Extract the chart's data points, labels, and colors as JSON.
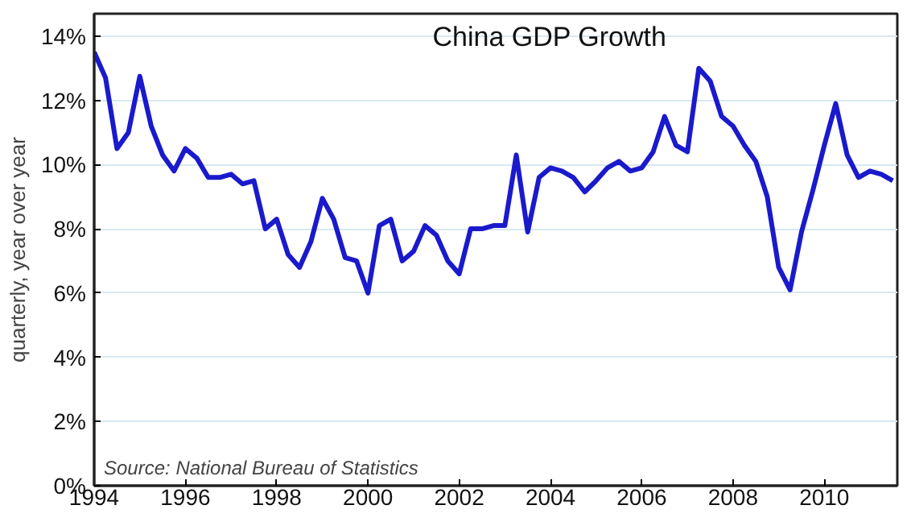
{
  "chart_data": {
    "type": "line",
    "title": "China GDP Growth",
    "ylabel": "quarterly, year over year",
    "annotations": [
      "Source: National Bureau of Statistics"
    ],
    "x": [
      1994,
      1994.25,
      1994.5,
      1994.75,
      1995,
      1995.25,
      1995.5,
      1995.75,
      1996,
      1996.25,
      1996.5,
      1996.75,
      1997,
      1997.25,
      1997.5,
      1997.75,
      1998,
      1998.25,
      1998.5,
      1998.75,
      1999,
      1999.25,
      1999.5,
      1999.75,
      2000,
      2000.25,
      2000.5,
      2000.75,
      2001,
      2001.25,
      2001.5,
      2001.75,
      2002,
      2002.25,
      2002.5,
      2002.75,
      2003,
      2003.25,
      2003.5,
      2003.75,
      2004,
      2004.25,
      2004.5,
      2004.75,
      2005,
      2005.25,
      2005.5,
      2005.75,
      2006,
      2006.25,
      2006.5,
      2006.75,
      2007,
      2007.25,
      2007.5,
      2007.75,
      2008,
      2008.25,
      2008.5,
      2008.75,
      2009,
      2009.25,
      2009.5,
      2009.75,
      2010,
      2010.25,
      2010.5,
      2010.75,
      2011,
      2011.25,
      2011.5
    ],
    "series": [
      {
        "color": "#1a1acc",
        "values": [
          13.5,
          12.7,
          10.5,
          11.0,
          12.75,
          11.2,
          10.3,
          9.8,
          10.5,
          10.2,
          9.6,
          9.6,
          9.7,
          9.4,
          9.5,
          8.0,
          8.3,
          7.2,
          6.8,
          7.6,
          8.95,
          8.3,
          7.1,
          7.0,
          6.0,
          8.1,
          8.3,
          7.0,
          7.3,
          8.1,
          7.8,
          7.0,
          6.6,
          8.0,
          8.0,
          8.1,
          8.1,
          10.3,
          7.9,
          9.6,
          9.9,
          9.8,
          9.6,
          9.15,
          9.5,
          9.9,
          10.1,
          9.8,
          9.9,
          10.4,
          11.5,
          10.6,
          10.4,
          13.0,
          12.6,
          11.5,
          11.2,
          10.6,
          10.1,
          9.0,
          6.8,
          6.1,
          7.9,
          9.2,
          10.6,
          11.9,
          10.3,
          9.6,
          9.8,
          9.7,
          9.5
        ]
      }
    ],
    "xlim": [
      1994,
      2011.6
    ],
    "ylim": [
      0,
      14.7
    ],
    "xticks": [
      1994,
      1996,
      1998,
      2000,
      2002,
      2004,
      2006,
      2008,
      2010
    ],
    "yticks": [
      {
        "value": 0,
        "label": "0%"
      },
      {
        "value": 2,
        "label": "2%"
      },
      {
        "value": 4,
        "label": "4%"
      },
      {
        "value": 6,
        "label": "6%"
      },
      {
        "value": 8,
        "label": "8%"
      },
      {
        "value": 10,
        "label": "10%"
      },
      {
        "value": 12,
        "label": "12%"
      },
      {
        "value": 14,
        "label": "14%"
      }
    ],
    "grid": "y",
    "marker": "none",
    "line_style": "solid"
  }
}
